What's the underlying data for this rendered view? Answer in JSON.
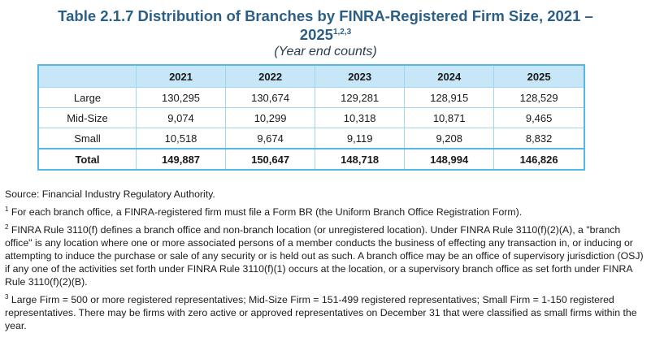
{
  "title": {
    "line1": "Table 2.1.7 Distribution of Branches by FINRA-Registered Firm Size, 2021 –",
    "line2": "2025",
    "line2_sup": "1,2,3",
    "subtitle": "(Year end counts)"
  },
  "table": {
    "years": [
      "2021",
      "2022",
      "2023",
      "2024",
      "2025"
    ],
    "rows": [
      {
        "label": "Large",
        "values": [
          "130,295",
          "130,674",
          "129,281",
          "128,915",
          "128,529"
        ]
      },
      {
        "label": "Mid-Size",
        "values": [
          "9,074",
          "10,299",
          "10,318",
          "10,871",
          "9,465"
        ]
      },
      {
        "label": "Small",
        "values": [
          "10,518",
          "9,674",
          "9,119",
          "9,208",
          "8,832"
        ]
      },
      {
        "label": "Total",
        "values": [
          "149,887",
          "150,647",
          "148,718",
          "148,994",
          "146,826"
        ]
      }
    ]
  },
  "notes": {
    "source": "Source: Financial Industry Regulatory Authority.",
    "footnotes": [
      {
        "marker": "1",
        "text": "For each branch office, a FINRA-registered firm must file a Form BR (the Uniform Branch Office Registration Form)."
      },
      {
        "marker": "2",
        "text": "FINRA Rule 3110(f) defines a branch office and non-branch location (or unregistered location). Under FINRA Rule 3110(f)(2)(A), a \"branch office\" is any location where one or more associated persons of a member conducts the business of effecting any transaction in, or inducing or attempting to induce the purchase or sale of any security or is held out as such. A branch office may be an office of supervisory jurisdiction (OSJ) if any one of the activities set forth under FINRA Rule 3110(f)(1) occurs at the location, or a supervisory branch office as set forth under FINRA Rule 3110(f)(2)(B)."
      },
      {
        "marker": "3",
        "text": "Large Firm = 500 or more registered representatives; Mid-Size Firm = 151-499 registered representatives; Small Firm = 1-150 registered representatives. There may be firms with zero active or approved representatives on December 31 that were classified as small firms within the year."
      }
    ]
  }
}
